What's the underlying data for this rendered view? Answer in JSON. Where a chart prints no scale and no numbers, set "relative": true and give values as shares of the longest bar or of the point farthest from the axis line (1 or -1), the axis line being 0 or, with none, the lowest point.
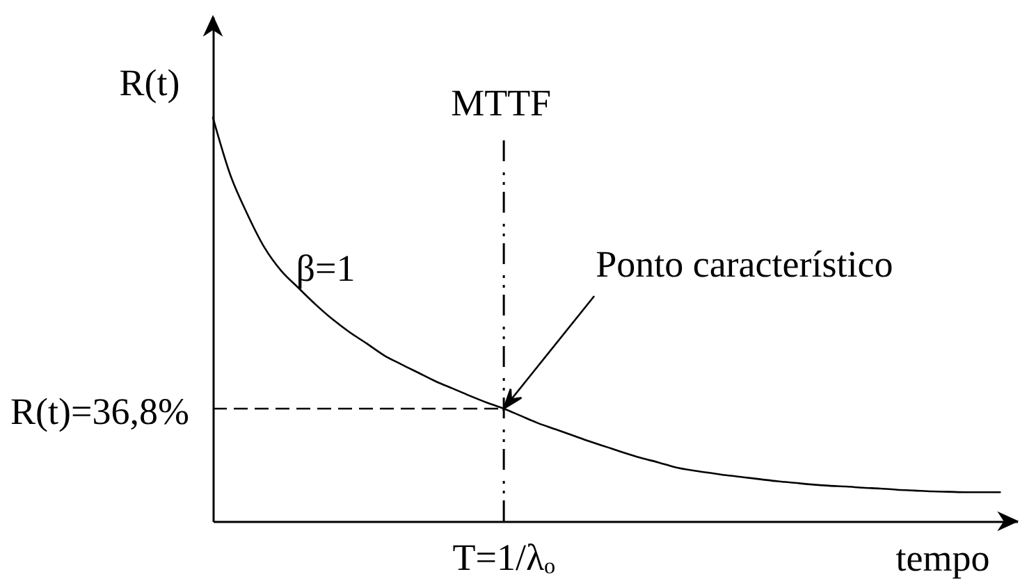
{
  "chart_data": {
    "type": "line",
    "xlabel": "tempo",
    "ylabel": "R(t)",
    "relative": true,
    "categories": [
      null,
      null,
      null,
      null,
      null,
      null,
      null,
      null,
      null,
      null,
      null,
      null,
      null,
      null,
      null,
      null,
      null,
      null,
      null,
      null,
      null,
      null,
      null,
      null,
      null,
      null,
      null,
      null,
      null,
      null,
      null,
      null,
      null,
      null,
      null,
      null,
      null,
      null,
      null,
      null,
      null,
      null,
      null,
      null,
      null,
      null,
      null,
      null
    ],
    "series": [
      {
        "name": "β=1",
        "color": "#000000",
        "values": [
          1.0,
          0.86,
          0.762,
          0.679,
          0.62,
          0.578,
          0.537,
          0.5,
          0.468,
          0.44,
          0.411,
          0.389,
          0.368,
          0.347,
          0.329,
          0.311,
          0.294,
          0.279,
          0.261,
          0.243,
          0.228,
          0.213,
          0.198,
          0.184,
          0.17,
          0.157,
          0.146,
          0.134,
          0.126,
          0.12,
          0.114,
          0.109,
          0.104,
          0.099,
          0.095,
          0.091,
          0.088,
          0.086,
          0.083,
          0.081,
          0.078,
          0.076,
          0.074,
          0.073,
          0.072,
          0.072,
          0.072,
          null
        ]
      }
    ],
    "ref_lines": [
      {
        "axis": "x",
        "value": "T=1/λₒ",
        "label": "MTTF",
        "line_style": "dashdot"
      },
      {
        "axis": "y",
        "value": 0.279,
        "line_style": "dashed"
      }
    ],
    "annotations": [
      "Ponto característico",
      "R(t)=36,8%"
    ]
  }
}
